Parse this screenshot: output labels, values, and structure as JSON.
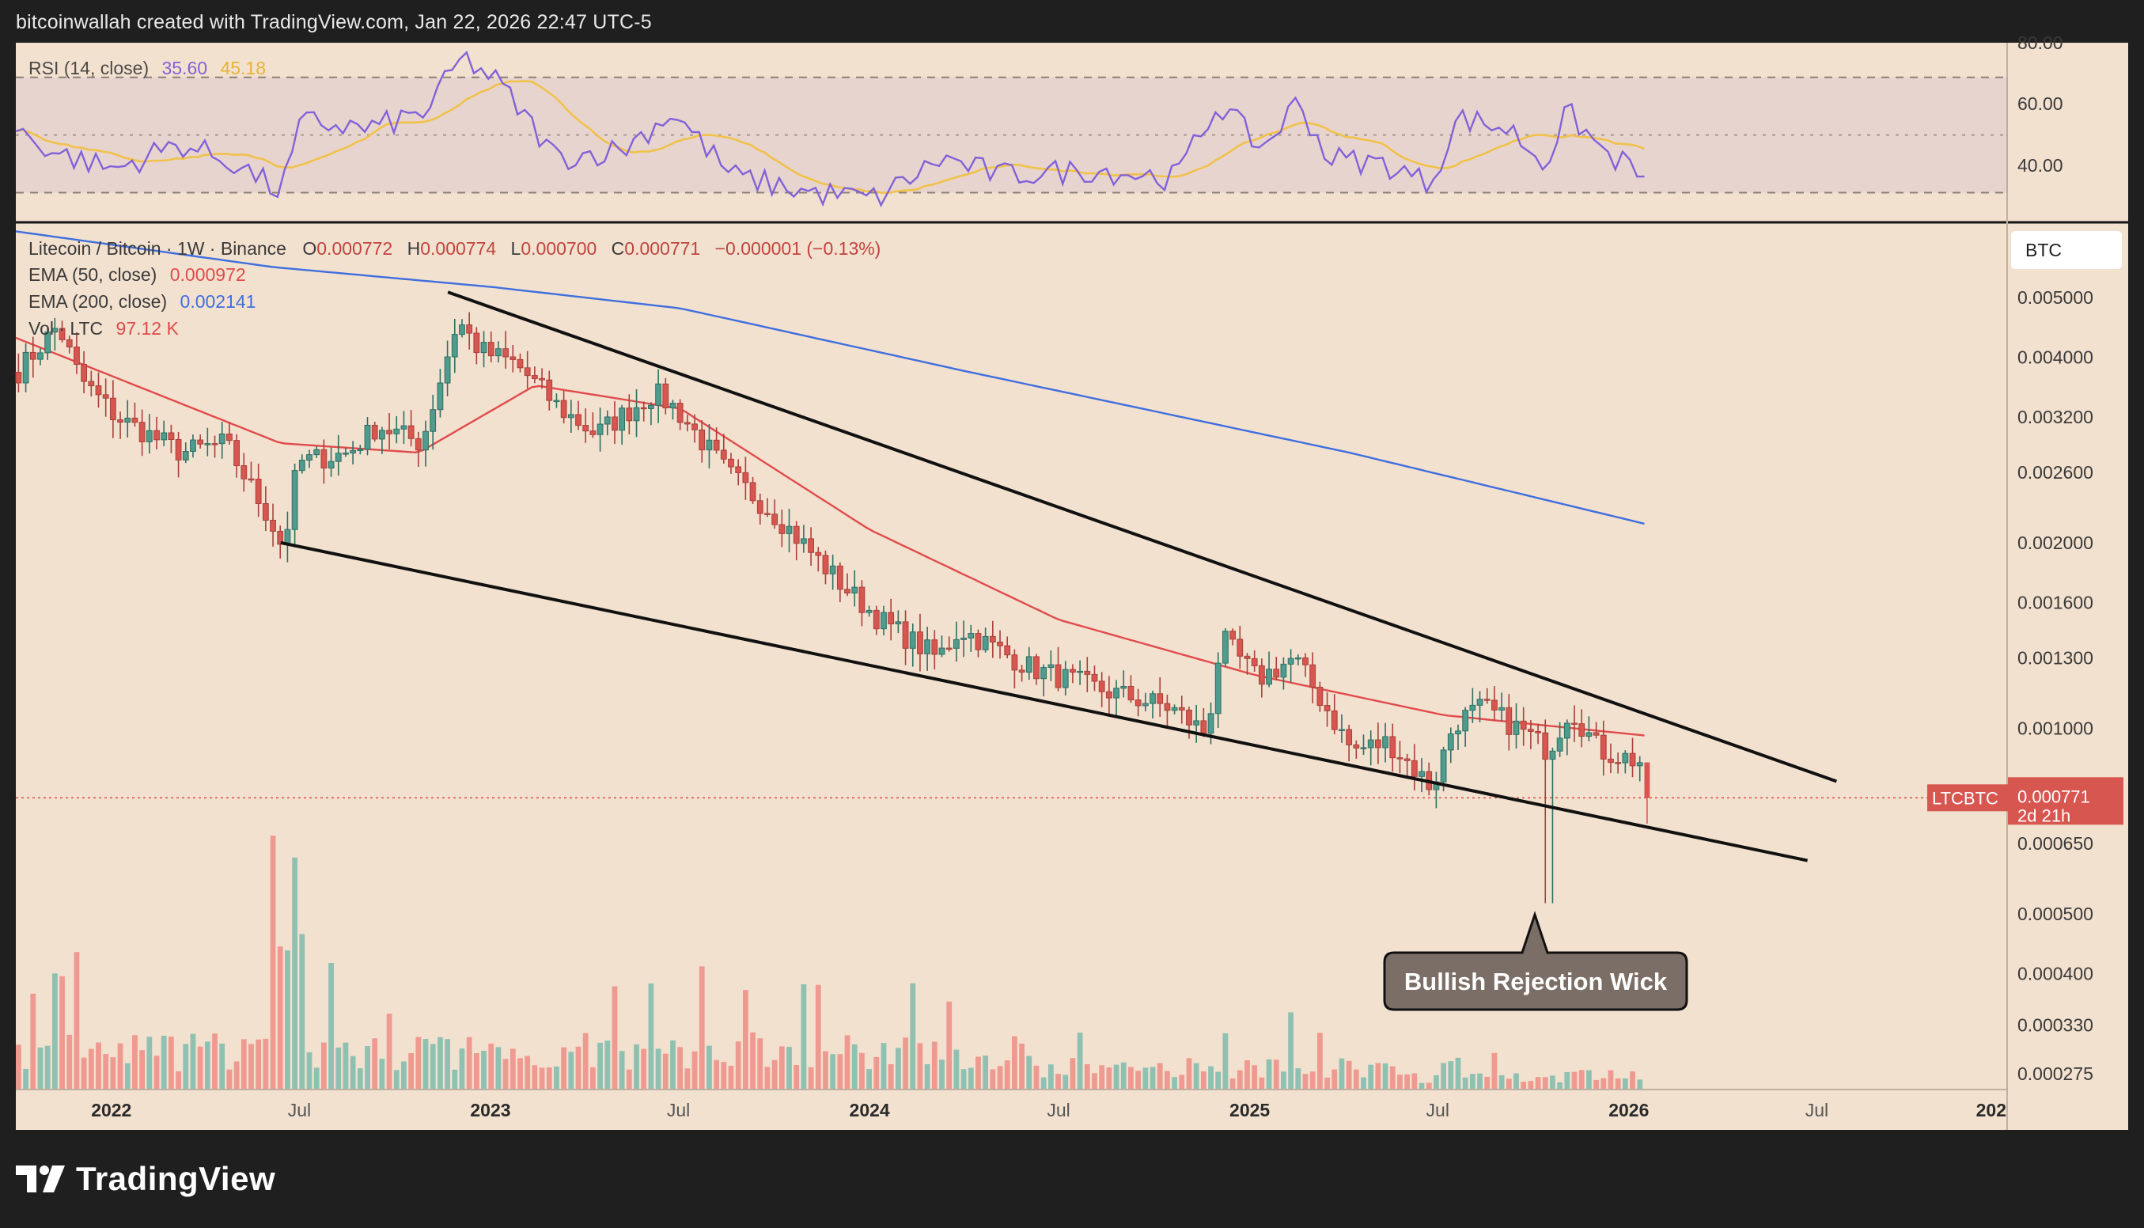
{
  "header": {
    "text": "bitcoinwallah created with TradingView.com, Jan 22, 2026 22:47 UTC-5"
  },
  "brand": {
    "name": "TradingView",
    "logo_icon": "tradingview-logo-icon"
  },
  "colors": {
    "background": "#f3e1cf",
    "bull": "#4f9b8e",
    "bear": "#d85650",
    "ema50": "#e04b4b",
    "ema200": "#3f6fde",
    "rsi": "#8162d8",
    "rsi_ma": "#f0c24a",
    "vol_bull": "#8fc1b3",
    "vol_bear": "#ef9a91"
  },
  "rsi_panel": {
    "legend": {
      "name": "RSI (14, close)",
      "value": "35.60",
      "ma_value": "45.18"
    },
    "levels": [
      70,
      50,
      30
    ],
    "y_ticks": [
      "80.00",
      "60.00",
      "40.00"
    ]
  },
  "main_legend": {
    "symbol": "Litecoin / Bitcoin · 1W · Binance",
    "o_label": "O",
    "o": "0.000772",
    "h_label": "H",
    "h": "0.000774",
    "l_label": "L",
    "l": "0.000700",
    "c_label": "C",
    "c": "0.000771",
    "change": "−0.000001 (−0.13%)",
    "ema50_label": "EMA (50, close)",
    "ema50_value": "0.000972",
    "ema200_label": "EMA (200, close)",
    "ema200_value": "0.002141",
    "vol_label": "Vol · LTC",
    "vol_value": "97.12 K"
  },
  "currency_button": "BTC",
  "price_axis_ticks": [
    "0.005000",
    "0.004000",
    "0.003200",
    "0.002600",
    "0.002000",
    "0.001600",
    "0.001300",
    "0.001000",
    "0.000650",
    "0.000500",
    "0.000400",
    "0.000330",
    "0.000275"
  ],
  "last_price": {
    "symbol": "LTCBTC",
    "value": "0.000771",
    "countdown": "2d 21h"
  },
  "time_axis": [
    "2022",
    "Jul",
    "2023",
    "Jul",
    "2024",
    "Jul",
    "2025",
    "Jul",
    "2026",
    "Jul",
    "202"
  ],
  "annotation": {
    "text": "Bullish Rejection Wick"
  },
  "chart_data": {
    "type": "candlestick",
    "symbol": "LTCBTC",
    "interval": "1W",
    "exchange": "Binance",
    "scale": "log",
    "x_range": [
      "2021-10",
      "2027-01"
    ],
    "price_range": [
      0.00026,
      0.0066
    ],
    "anchors": [
      {
        "t": "2021-10-01",
        "p": 0.0038
      },
      {
        "t": "2021-11-08",
        "p": 0.0045
      },
      {
        "t": "2021-11-29",
        "p": 0.0037
      },
      {
        "t": "2022-01-03",
        "p": 0.0032
      },
      {
        "t": "2022-03-07",
        "p": 0.0028
      },
      {
        "t": "2022-04-18",
        "p": 0.0029
      },
      {
        "t": "2022-05-30",
        "p": 0.0022
      },
      {
        "t": "2022-06-13",
        "p": 0.00195
      },
      {
        "t": "2022-06-27",
        "p": 0.0027
      },
      {
        "t": "2022-08-15",
        "p": 0.0028
      },
      {
        "t": "2022-09-12",
        "p": 0.0031
      },
      {
        "t": "2022-10-24",
        "p": 0.0029
      },
      {
        "t": "2022-11-28",
        "p": 0.0046
      },
      {
        "t": "2022-12-19",
        "p": 0.0041
      },
      {
        "t": "2023-01-23",
        "p": 0.0039
      },
      {
        "t": "2023-03-06",
        "p": 0.0033
      },
      {
        "t": "2023-04-10",
        "p": 0.003
      },
      {
        "t": "2023-06-05",
        "p": 0.0035
      },
      {
        "t": "2023-06-26",
        "p": 0.0033
      },
      {
        "t": "2023-08-14",
        "p": 0.0026
      },
      {
        "t": "2023-10-02",
        "p": 0.0022
      },
      {
        "t": "2023-12-04",
        "p": 0.0017
      },
      {
        "t": "2024-01-08",
        "p": 0.0015
      },
      {
        "t": "2024-03-04",
        "p": 0.0013
      },
      {
        "t": "2024-03-25",
        "p": 0.00145
      },
      {
        "t": "2024-06-03",
        "p": 0.00125
      },
      {
        "t": "2024-08-12",
        "p": 0.00115
      },
      {
        "t": "2024-10-14",
        "p": 0.00108
      },
      {
        "t": "2024-11-18",
        "p": 0.00098
      },
      {
        "t": "2024-12-02",
        "p": 0.0014
      },
      {
        "t": "2025-01-06",
        "p": 0.0012
      },
      {
        "t": "2025-02-10",
        "p": 0.0013
      },
      {
        "t": "2025-03-10",
        "p": 0.0011
      },
      {
        "t": "2025-04-07",
        "p": 0.00092
      },
      {
        "t": "2025-05-12",
        "p": 0.00095
      },
      {
        "t": "2025-06-23",
        "p": 0.0008
      },
      {
        "t": "2025-07-14",
        "p": 0.00102
      },
      {
        "t": "2025-08-11",
        "p": 0.00108
      },
      {
        "t": "2025-09-22",
        "p": 0.00098
      },
      {
        "t": "2025-10-13",
        "p": 0.00092
      },
      {
        "t": "2025-11-03",
        "p": 0.00108
      },
      {
        "t": "2025-12-01",
        "p": 0.00092
      },
      {
        "t": "2026-01-12",
        "p": 0.00088
      },
      {
        "t": "2026-01-19",
        "p": 0.000771
      }
    ],
    "last_candle": {
      "open": 0.000772,
      "high": 0.000774,
      "low": 0.0007,
      "close": 0.000771
    },
    "rejection_wick": {
      "t": "2025-10-13",
      "low": 0.00052
    },
    "ema50": [
      {
        "t": "2021-10-01",
        "p": 0.0043
      },
      {
        "t": "2022-06-13",
        "p": 0.0029
      },
      {
        "t": "2022-10-24",
        "p": 0.0028
      },
      {
        "t": "2023-02-13",
        "p": 0.0036
      },
      {
        "t": "2023-07-03",
        "p": 0.0033
      },
      {
        "t": "2024-01-01",
        "p": 0.0021
      },
      {
        "t": "2024-07-01",
        "p": 0.0015
      },
      {
        "t": "2025-01-06",
        "p": 0.00122
      },
      {
        "t": "2025-07-07",
        "p": 0.00105
      },
      {
        "t": "2026-01-19",
        "p": 0.000972
      }
    ],
    "ema200": [
      {
        "t": "2021-10-01",
        "p": 0.0064
      },
      {
        "t": "2022-06-06",
        "p": 0.0056
      },
      {
        "t": "2023-01-02",
        "p": 0.0052
      },
      {
        "t": "2023-07-03",
        "p": 0.0048
      },
      {
        "t": "2024-04-01",
        "p": 0.0038
      },
      {
        "t": "2025-04-07",
        "p": 0.0028
      },
      {
        "t": "2026-01-19",
        "p": 0.002141
      }
    ],
    "trendlines": [
      {
        "from": {
          "t": "2022-11-21",
          "p": 0.0051
        },
        "to": {
          "t": "2026-07-20",
          "p": 0.00082
        }
      },
      {
        "from": {
          "t": "2022-06-13",
          "p": 0.002
        },
        "to": {
          "t": "2026-06-22",
          "p": 0.00061
        }
      }
    ],
    "rsi": [
      {
        "t": "2021-10-01",
        "v": 52
      },
      {
        "t": "2021-11-08",
        "v": 44
      },
      {
        "t": "2022-01-03",
        "v": 38
      },
      {
        "t": "2022-03-07",
        "v": 47
      },
      {
        "t": "2022-05-02",
        "v": 40
      },
      {
        "t": "2022-06-13",
        "v": 30
      },
      {
        "t": "2022-07-04",
        "v": 55
      },
      {
        "t": "2022-09-05",
        "v": 52
      },
      {
        "t": "2022-10-31",
        "v": 58
      },
      {
        "t": "2022-12-05",
        "v": 77
      },
      {
        "t": "2023-01-09",
        "v": 68
      },
      {
        "t": "2023-03-06",
        "v": 42
      },
      {
        "t": "2023-05-08",
        "v": 45
      },
      {
        "t": "2023-06-26",
        "v": 58
      },
      {
        "t": "2023-08-21",
        "v": 36
      },
      {
        "t": "2023-11-06",
        "v": 30
      },
      {
        "t": "2024-01-08",
        "v": 28
      },
      {
        "t": "2024-03-11",
        "v": 42
      },
      {
        "t": "2024-05-06",
        "v": 36
      },
      {
        "t": "2024-08-05",
        "v": 38
      },
      {
        "t": "2024-10-21",
        "v": 35
      },
      {
        "t": "2024-12-02",
        "v": 61
      },
      {
        "t": "2025-01-13",
        "v": 45
      },
      {
        "t": "2025-02-17",
        "v": 62
      },
      {
        "t": "2025-03-17",
        "v": 42
      },
      {
        "t": "2025-05-12",
        "v": 40
      },
      {
        "t": "2025-06-23",
        "v": 33
      },
      {
        "t": "2025-07-21",
        "v": 56
      },
      {
        "t": "2025-09-08",
        "v": 52
      },
      {
        "t": "2025-10-13",
        "v": 40
      },
      {
        "t": "2025-11-03",
        "v": 58
      },
      {
        "t": "2025-12-08",
        "v": 44
      },
      {
        "t": "2026-01-19",
        "v": 35.6
      }
    ],
    "rsi_ma_end": 45.18,
    "rsi_range": [
      20,
      82
    ]
  }
}
